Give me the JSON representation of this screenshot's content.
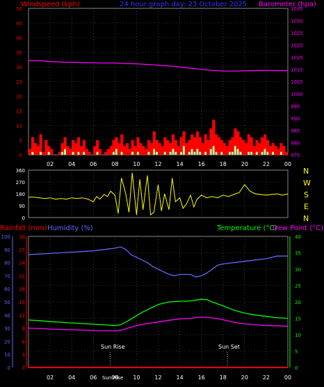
{
  "chart_data": [
    {
      "type": "line",
      "title": "24 hour graph day:  23 October 2025",
      "ylabel_left": "Windspeed (kph)",
      "ylabel_right": "Barometer (hpa)",
      "x_ticks": [
        "02",
        "04",
        "06",
        "08",
        "10",
        "12",
        "14",
        "16",
        "18",
        "20",
        "22",
        "00"
      ],
      "ylim_left": [
        0,
        50
      ],
      "ylim_right": [
        975,
        1035
      ],
      "yticks_left": [
        0,
        5,
        10,
        15,
        20,
        25,
        30,
        35,
        40,
        45,
        50
      ],
      "yticks_right": [
        975,
        980,
        985,
        990,
        995,
        1000,
        1005,
        1010,
        1015,
        1020,
        1025,
        1030,
        1035
      ],
      "grid": true,
      "series": [
        {
          "name": "Windspeed (kph)",
          "color": "#ff0000",
          "axis": "left",
          "kind": "bars",
          "values": [
            2,
            6,
            4,
            3,
            7,
            1,
            5,
            3,
            2,
            0,
            0,
            1,
            4,
            6,
            3,
            2,
            5,
            4,
            6,
            3,
            5,
            2,
            1,
            0,
            3,
            5,
            2,
            0,
            1,
            2,
            3,
            5,
            6,
            4,
            7,
            3,
            4,
            2,
            5,
            3,
            6,
            4,
            3,
            2,
            5,
            4,
            8,
            5,
            4,
            3,
            6,
            5,
            4,
            7,
            5,
            3,
            6,
            8,
            4,
            5,
            7,
            6,
            8,
            6,
            4,
            7,
            5,
            9,
            12,
            7,
            6,
            5,
            4,
            3,
            5,
            6,
            9,
            8,
            6,
            5,
            4,
            7,
            6,
            3,
            5,
            4,
            6,
            7,
            5,
            3,
            4,
            3,
            2,
            4,
            3,
            1
          ]
        },
        {
          "name": "Gust",
          "color": "#aaffaa",
          "axis": "left",
          "kind": "bars",
          "values": [
            0,
            1,
            0,
            0,
            1,
            0,
            0,
            1,
            0,
            0,
            0,
            0,
            1,
            2,
            0,
            0,
            1,
            0,
            1,
            0,
            1,
            0,
            0,
            0,
            0,
            1,
            0,
            0,
            0,
            0,
            0,
            1,
            2,
            0,
            1,
            0,
            0,
            0,
            1,
            0,
            1,
            0,
            0,
            0,
            1,
            0,
            2,
            1,
            0,
            0,
            1,
            0,
            1,
            2,
            1,
            0,
            1,
            3,
            0,
            1,
            2,
            1,
            2,
            1,
            0,
            1,
            0,
            2,
            3,
            1,
            0,
            1,
            0,
            0,
            1,
            1,
            3,
            2,
            1,
            0,
            0,
            1,
            1,
            0,
            1,
            0,
            1,
            2,
            1,
            0,
            1,
            0,
            0,
            1,
            0,
            0
          ]
        },
        {
          "name": "Barometer (hpa)",
          "color": "#ff00ff",
          "axis": "right",
          "x": [
            0,
            1,
            2,
            3,
            4,
            5,
            6,
            7,
            8,
            9,
            10,
            11,
            12,
            13,
            14,
            15,
            16,
            17,
            18,
            19,
            20,
            21,
            22,
            23,
            24
          ],
          "values": [
            1013.6,
            1013.6,
            1013.2,
            1013.0,
            1012.9,
            1012.8,
            1012.7,
            1012.6,
            1012.6,
            1012.4,
            1012.3,
            1012.0,
            1011.7,
            1011.4,
            1011.0,
            1010.5,
            1010.0,
            1009.6,
            1009.3,
            1009.3,
            1009.4,
            1009.5,
            1009.6,
            1009.5,
            1009.5
          ]
        }
      ]
    },
    {
      "type": "line",
      "right_labels": [
        "N",
        "W",
        "S",
        "E",
        "N"
      ],
      "ylim": [
        0,
        360
      ],
      "yticks": [
        0,
        90,
        180,
        270,
        360
      ],
      "grid": true,
      "series": [
        {
          "name": "Wind direction",
          "color": "#ffff00",
          "x": [
            0,
            0.5,
            1,
            1.5,
            2,
            2.5,
            3,
            3.5,
            4,
            4.5,
            5,
            5.5,
            6,
            6.3,
            6.6,
            7,
            7.3,
            7.6,
            8,
            8.3,
            8.6,
            9,
            9.3,
            9.6,
            10,
            10.3,
            10.6,
            11,
            11.3,
            11.6,
            12,
            12.3,
            12.6,
            13,
            13.3,
            13.6,
            14,
            14.3,
            14.6,
            15,
            15.3,
            15.6,
            16,
            16.5,
            17,
            17.5,
            18,
            18.5,
            19,
            19.5,
            20,
            20.5,
            21,
            21.5,
            22,
            22.5,
            23,
            23.5,
            24
          ],
          "values": [
            155,
            155,
            150,
            145,
            150,
            140,
            145,
            140,
            150,
            145,
            150,
            140,
            120,
            160,
            140,
            175,
            160,
            200,
            170,
            30,
            300,
            180,
            40,
            340,
            20,
            290,
            60,
            320,
            20,
            40,
            250,
            50,
            180,
            60,
            300,
            120,
            150,
            70,
            100,
            170,
            80,
            140,
            170,
            150,
            160,
            150,
            170,
            160,
            175,
            190,
            250,
            200,
            180,
            175,
            170,
            175,
            180,
            170,
            180
          ]
        }
      ]
    },
    {
      "type": "line",
      "ylabel_left_outer": "Rainfall (mm)",
      "ylabel_left_inner": "Humidity (%)",
      "ylabel_right": "Temperature (°C)",
      "ylabel_right2": "Dew Point (°C)",
      "x_ticks": [
        "02",
        "04",
        "06",
        "08",
        "10",
        "12",
        "14",
        "16",
        "18",
        "20",
        "22",
        "00"
      ],
      "yticks_rain": [
        0,
        3,
        6,
        9,
        12,
        15,
        18,
        21,
        24,
        27,
        30
      ],
      "yticks_humidity": [
        0,
        10,
        20,
        30,
        40,
        50,
        60,
        70,
        80,
        90,
        100
      ],
      "yticks_temp": [
        0,
        5,
        10,
        15,
        20,
        25,
        30,
        35,
        40
      ],
      "annotations": [
        "Sun Rise",
        "Sun Set",
        "Sun Rise"
      ],
      "grid": true,
      "series": [
        {
          "name": "Rainfall (mm)",
          "color": "#ff0000",
          "axis": "rain",
          "x": [
            0,
            24
          ],
          "values": [
            0,
            0
          ]
        },
        {
          "name": "Humidity (%)",
          "color": "#6666ff",
          "axis": "humidity",
          "x": [
            0,
            2,
            4,
            6,
            7,
            8,
            8.5,
            9,
            9.5,
            10,
            10.5,
            11,
            11.5,
            12,
            12.5,
            13,
            13.5,
            14,
            15,
            15.5,
            16,
            16.5,
            17,
            17.5,
            18,
            19,
            20,
            21,
            22,
            23,
            24
          ],
          "values": [
            86,
            87,
            88,
            89,
            90,
            91,
            92,
            90,
            86,
            84,
            82,
            80,
            77,
            75,
            73,
            71,
            70,
            71,
            71,
            69,
            70,
            72,
            75,
            78,
            79,
            80,
            81,
            82,
            83,
            85,
            85
          ]
        },
        {
          "name": "Temperature (°C)",
          "color": "#00ff00",
          "axis": "temp",
          "x": [
            0,
            1,
            2,
            3,
            4,
            5,
            6,
            7,
            8,
            8.5,
            9,
            9.5,
            10,
            10.5,
            11,
            11.5,
            12,
            12.5,
            13,
            14,
            15,
            16,
            16.5,
            17,
            18,
            19,
            20,
            21,
            22,
            23,
            24
          ],
          "values": [
            14.5,
            14.3,
            14.0,
            13.8,
            13.6,
            13.4,
            13.2,
            13.0,
            12.8,
            13.0,
            13.8,
            14.8,
            15.8,
            16.8,
            17.6,
            18.4,
            19.2,
            19.6,
            20.0,
            20.2,
            20.3,
            20.8,
            20.7,
            20.0,
            18.8,
            17.5,
            16.6,
            16.0,
            15.6,
            15.2,
            15.0
          ]
        },
        {
          "name": "Dew Point (°C)",
          "color": "#ff00ff",
          "axis": "temp",
          "x": [
            0,
            1,
            2,
            3,
            4,
            5,
            6,
            7,
            8,
            8.5,
            9,
            9.5,
            10,
            11,
            12,
            13,
            14,
            15,
            16,
            16.5,
            17,
            18,
            19,
            20,
            21,
            22,
            23,
            24
          ],
          "values": [
            12.0,
            11.9,
            11.7,
            11.6,
            11.5,
            11.4,
            11.3,
            11.2,
            11.2,
            11.3,
            11.8,
            12.3,
            12.8,
            13.4,
            13.9,
            14.4,
            14.8,
            15.0,
            15.4,
            15.3,
            15.1,
            14.6,
            13.8,
            13.3,
            13.0,
            12.8,
            12.7,
            12.6
          ]
        }
      ]
    }
  ]
}
